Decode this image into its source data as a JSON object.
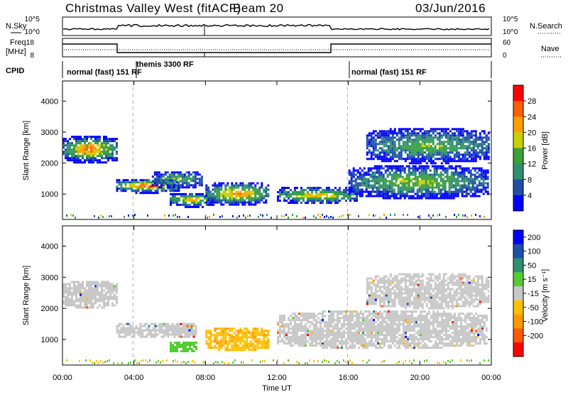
{
  "header": {
    "title": "Christmas Valley West (fitACF)",
    "beam": "Beam 20",
    "date": "03/Jun/2016"
  },
  "panels": {
    "nsky": {
      "left_label": "N.Sky",
      "left_ticks": [
        "10^5",
        "10^0"
      ],
      "right_ticks": [
        "10^5",
        "10^0"
      ],
      "right_label": "N.Search"
    },
    "freq": {
      "left_label_1": "Freq.",
      "left_label_2": "[MHz]",
      "left_ticks": [
        "18",
        "8"
      ],
      "right_ticks": [
        "60",
        "0"
      ],
      "right_label": "Nave"
    },
    "cpid": {
      "left_label": "CPID",
      "segments": [
        "normal (fast) 151 RF",
        "themis 3300 RF",
        "normal (fast) 151 RF"
      ]
    }
  },
  "colors": {
    "power_scale": [
      "#0000ff",
      "#1f4fa8",
      "#2f8f6f",
      "#3aa03a",
      "#c8d000",
      "#ffa000",
      "#ff6000",
      "#ff0000"
    ],
    "velocity_scale": [
      "#ff0000",
      "#ff5a00",
      "#ff9900",
      "#ffc000",
      "#c8c8c8",
      "#55cc33",
      "#2f8f6f",
      "#1f4fa8",
      "#0000ff"
    ],
    "ground_scatter": "#c8c8c8"
  },
  "chart_data": [
    {
      "type": "heatmap",
      "name": "power",
      "ylabel": "Slant Range [km]",
      "xlabel": "Time UT",
      "x_ticks": [
        "00:00",
        "04:00",
        "08:00",
        "12:00",
        "16:00",
        "20:00",
        "00:00"
      ],
      "y_ticks": [
        "1000",
        "2000",
        "3000",
        "4000"
      ],
      "xlim_hours": [
        0,
        24
      ],
      "ylim_km": [
        180,
        4650
      ],
      "colorbar": {
        "label": "Power [dB]",
        "ticks": [
          "4",
          "8",
          "12",
          "16",
          "20",
          "24",
          "28"
        ]
      },
      "echo_regions": [
        {
          "t0": 0.0,
          "t1": 3.0,
          "r0": 2000,
          "r1": 2950,
          "peak": 25
        },
        {
          "t0": 3.0,
          "t1": 6.5,
          "r0": 1050,
          "r1": 1550,
          "peak": 28
        },
        {
          "t0": 5.0,
          "t1": 7.8,
          "r0": 1200,
          "r1": 1800,
          "peak": 14
        },
        {
          "t0": 6.0,
          "t1": 8.5,
          "r0": 600,
          "r1": 1100,
          "peak": 22
        },
        {
          "t0": 8.0,
          "t1": 11.5,
          "r0": 650,
          "r1": 1450,
          "peak": 24
        },
        {
          "t0": 12.0,
          "t1": 16.5,
          "r0": 700,
          "r1": 1300,
          "peak": 20
        },
        {
          "t0": 16.0,
          "t1": 23.8,
          "r0": 850,
          "r1": 2000,
          "peak": 16
        },
        {
          "t0": 17.0,
          "t1": 23.9,
          "r0": 2000,
          "r1": 3200,
          "peak": 14
        }
      ]
    },
    {
      "type": "heatmap",
      "name": "velocity",
      "ylabel": "Slant Range [km]",
      "xlabel": "Time UT",
      "x_ticks": [
        "00:00",
        "04:00",
        "08:00",
        "12:00",
        "16:00",
        "20:00",
        "00:00"
      ],
      "y_ticks": [
        "1000",
        "2000",
        "3000",
        "4000"
      ],
      "xlim_hours": [
        0,
        24
      ],
      "ylim_km": [
        180,
        4650
      ],
      "colorbar": {
        "label": "Velocity [m s⁻¹]",
        "ticks": [
          "200",
          "100",
          "50",
          "15",
          "-15",
          "-50",
          "-100",
          "-200"
        ]
      },
      "echo_regions": [
        {
          "t0": 0.0,
          "t1": 3.0,
          "r0": 2000,
          "r1": 2950,
          "kind": "ground"
        },
        {
          "t0": 3.0,
          "t1": 7.5,
          "r0": 1050,
          "r1": 1600,
          "kind": "ground"
        },
        {
          "t0": 6.0,
          "t1": 7.5,
          "r0": 600,
          "r1": 1000,
          "kind": "positive"
        },
        {
          "t0": 8.0,
          "t1": 11.5,
          "r0": 650,
          "r1": 1450,
          "kind": "negative"
        },
        {
          "t0": 12.0,
          "t1": 23.8,
          "r0": 700,
          "r1": 2000,
          "kind": "ground"
        },
        {
          "t0": 17.0,
          "t1": 23.9,
          "r0": 2000,
          "r1": 3200,
          "kind": "ground"
        }
      ]
    }
  ]
}
